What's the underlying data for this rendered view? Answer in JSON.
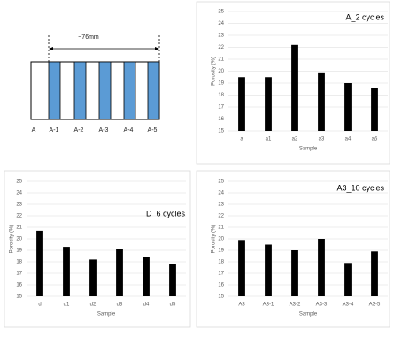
{
  "diagram": {
    "dimension": "~76mm",
    "labels": [
      "A",
      "A-1",
      "A-2",
      "A-3",
      "A-4",
      "A-5"
    ]
  },
  "chart_data": [
    {
      "type": "bar",
      "title": "A_2 cycles",
      "categories": [
        "a",
        "a1",
        "a2",
        "a3",
        "a4",
        "a5"
      ],
      "values": [
        19.5,
        19.5,
        22.2,
        19.9,
        19.0,
        18.6
      ],
      "color": "#000000",
      "ylim": [
        15,
        25
      ],
      "yticks": [
        15,
        16,
        17,
        18,
        19,
        20,
        21,
        22,
        23,
        24,
        25
      ],
      "grid": true,
      "ylabel": "Porosity (%)",
      "xlabel": "Sample"
    },
    {
      "type": "bar",
      "title": "D_6 cycles",
      "categories": [
        "d",
        "d1",
        "d2",
        "d3",
        "d4",
        "d5"
      ],
      "values": [
        20.7,
        19.3,
        18.2,
        19.1,
        18.4,
        17.8
      ],
      "color": "#000000",
      "ylim": [
        15,
        25
      ],
      "yticks": [
        15,
        16,
        17,
        18,
        19,
        20,
        21,
        22,
        23,
        24,
        25
      ],
      "grid": true,
      "ylabel": "Porosity (%)",
      "xlabel": "Sample"
    },
    {
      "type": "bar",
      "title": "A3_10 cycles",
      "categories": [
        "A3",
        "A3-1",
        "A3-2",
        "A3-3",
        "A3-4",
        "A3-5"
      ],
      "values": [
        19.9,
        19.5,
        19.0,
        20.0,
        17.9,
        18.9
      ],
      "color": "#000000",
      "ylim": [
        15,
        25
      ],
      "yticks": [
        15,
        16,
        17,
        18,
        19,
        20,
        21,
        22,
        23,
        24,
        25
      ],
      "grid": true,
      "ylabel": "Porosity (%)",
      "xlabel": "Sample"
    }
  ]
}
